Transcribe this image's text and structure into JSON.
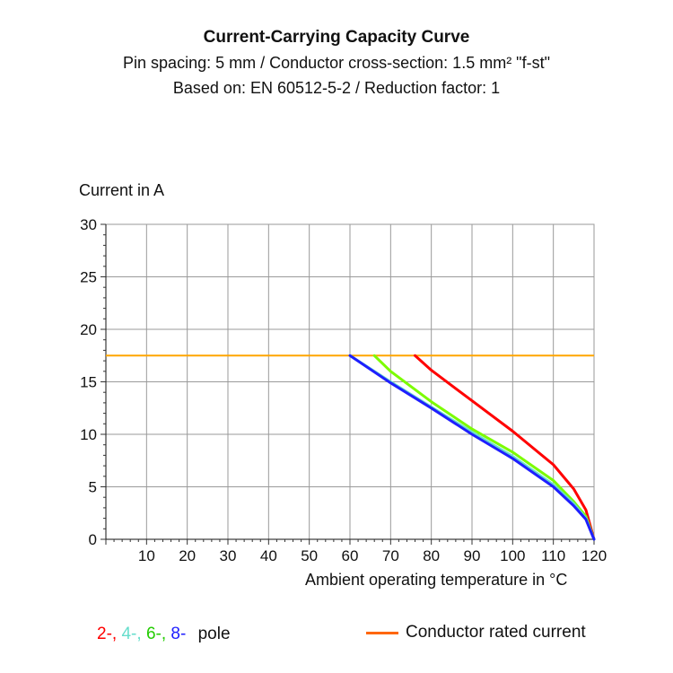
{
  "chart_data": {
    "type": "line",
    "title": "Current-Carrying Capacity Curve",
    "subtitle_lines": [
      "Pin spacing: 5 mm / Conductor cross-section: 1.5 mm² \"f-st\"",
      "Based on: EN 60512-5-2 / Reduction factor: 1"
    ],
    "ylabel": "Current in A",
    "xlabel": "Ambient operating temperature in °C",
    "xlim": [
      0,
      120
    ],
    "ylim": [
      0,
      30
    ],
    "x_ticks": [
      10,
      20,
      30,
      40,
      50,
      60,
      70,
      80,
      90,
      100,
      110,
      120
    ],
    "y_ticks": [
      0,
      5,
      10,
      15,
      20,
      25,
      30
    ],
    "grid": true,
    "rated_current": {
      "name": "Conductor rated current",
      "value": 17.5,
      "color": "#ffa500"
    },
    "series": [
      {
        "color": "#ff0000",
        "points": [
          [
            76,
            17.5
          ],
          [
            80,
            16.1
          ],
          [
            90,
            13.2
          ],
          [
            100,
            10.3
          ],
          [
            110,
            7.1
          ],
          [
            115,
            4.8
          ],
          [
            118,
            2.8
          ],
          [
            120,
            0
          ]
        ]
      },
      {
        "color": "#7cfc00",
        "points": [
          [
            66,
            17.5
          ],
          [
            70,
            16.0
          ],
          [
            80,
            13.1
          ],
          [
            90,
            10.5
          ],
          [
            100,
            8.3
          ],
          [
            110,
            5.6
          ],
          [
            115,
            3.6
          ],
          [
            118,
            2.2
          ],
          [
            120,
            0
          ]
        ]
      },
      {
        "color": "#66ddcc",
        "points": [
          [
            60,
            17.5
          ],
          [
            70,
            15.0
          ],
          [
            80,
            12.6
          ],
          [
            90,
            10.2
          ],
          [
            100,
            7.9
          ],
          [
            110,
            5.2
          ],
          [
            115,
            3.4
          ],
          [
            118,
            2.0
          ],
          [
            120,
            0
          ]
        ]
      },
      {
        "color": "#1e1eff",
        "points": [
          [
            60,
            17.5
          ],
          [
            70,
            14.9
          ],
          [
            80,
            12.5
          ],
          [
            90,
            10.0
          ],
          [
            100,
            7.7
          ],
          [
            110,
            5.0
          ],
          [
            115,
            3.2
          ],
          [
            118,
            1.9
          ],
          [
            120,
            0
          ]
        ]
      }
    ],
    "legend": {
      "poles": [
        {
          "text": "2-,",
          "color": "#ff0000"
        },
        {
          "text": "4-,",
          "color": "#66ddcc"
        },
        {
          "text": "6-,",
          "color": "#22cc00"
        },
        {
          "text": "8-",
          "color": "#1e1eff"
        }
      ],
      "poles_suffix": "pole",
      "rated_label": "Conductor rated current",
      "rated_line_color": "#ff6600"
    }
  }
}
